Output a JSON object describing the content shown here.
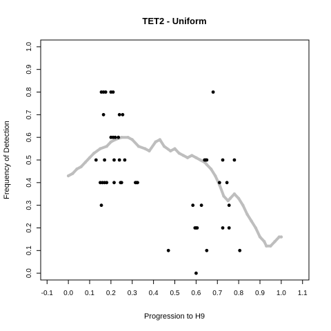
{
  "chart_data": {
    "type": "scatter",
    "title": "TET2 - Uniform",
    "xlabel": "Progression to H9",
    "ylabel": "Frequency of Detection",
    "xlim": [
      -0.13,
      1.13
    ],
    "ylim": [
      -0.03,
      1.03
    ],
    "xticks": [
      "-0.1",
      "0.0",
      "0.1",
      "0.2",
      "0.3",
      "0.4",
      "0.5",
      "0.6",
      "0.7",
      "0.8",
      "0.9",
      "1.0",
      "1.1"
    ],
    "yticks": [
      "0.0",
      "0.1",
      "0.2",
      "0.3",
      "0.4",
      "0.5",
      "0.6",
      "0.7",
      "0.8",
      "0.9",
      "1.0"
    ],
    "grid": false,
    "colors": {
      "points": "#000000",
      "trend": "#bebebe"
    },
    "series": [
      {
        "kind": "points",
        "points": [
          [
            0.155,
            0.8
          ],
          [
            0.165,
            0.8
          ],
          [
            0.175,
            0.8
          ],
          [
            0.2,
            0.8
          ],
          [
            0.21,
            0.8
          ],
          [
            0.165,
            0.7
          ],
          [
            0.24,
            0.7
          ],
          [
            0.255,
            0.7
          ],
          [
            0.2,
            0.6
          ],
          [
            0.21,
            0.6
          ],
          [
            0.22,
            0.6
          ],
          [
            0.235,
            0.6
          ],
          [
            0.13,
            0.5
          ],
          [
            0.17,
            0.5
          ],
          [
            0.215,
            0.5
          ],
          [
            0.24,
            0.5
          ],
          [
            0.265,
            0.5
          ],
          [
            0.15,
            0.4
          ],
          [
            0.16,
            0.4
          ],
          [
            0.17,
            0.4
          ],
          [
            0.18,
            0.4
          ],
          [
            0.215,
            0.4
          ],
          [
            0.245,
            0.4
          ],
          [
            0.25,
            0.4
          ],
          [
            0.315,
            0.4
          ],
          [
            0.32,
            0.4
          ],
          [
            0.325,
            0.4
          ],
          [
            0.155,
            0.3
          ],
          [
            0.64,
            0.5
          ],
          [
            0.645,
            0.5
          ],
          [
            0.65,
            0.5
          ],
          [
            0.68,
            0.8
          ],
          [
            0.725,
            0.5
          ],
          [
            0.78,
            0.5
          ],
          [
            0.71,
            0.4
          ],
          [
            0.745,
            0.4
          ],
          [
            0.585,
            0.3
          ],
          [
            0.625,
            0.3
          ],
          [
            0.755,
            0.3
          ],
          [
            0.595,
            0.2
          ],
          [
            0.6,
            0.2
          ],
          [
            0.605,
            0.2
          ],
          [
            0.725,
            0.2
          ],
          [
            0.755,
            0.2
          ],
          [
            0.47,
            0.1
          ],
          [
            0.65,
            0.1
          ],
          [
            0.805,
            0.1
          ],
          [
            0.6,
            0.0
          ]
        ]
      },
      {
        "kind": "trend",
        "points": [
          [
            0.0,
            0.43
          ],
          [
            0.02,
            0.44
          ],
          [
            0.04,
            0.46
          ],
          [
            0.06,
            0.47
          ],
          [
            0.08,
            0.49
          ],
          [
            0.1,
            0.51
          ],
          [
            0.12,
            0.53
          ],
          [
            0.15,
            0.55
          ],
          [
            0.18,
            0.56
          ],
          [
            0.2,
            0.58
          ],
          [
            0.22,
            0.59
          ],
          [
            0.25,
            0.6
          ],
          [
            0.28,
            0.6
          ],
          [
            0.3,
            0.59
          ],
          [
            0.33,
            0.56
          ],
          [
            0.36,
            0.55
          ],
          [
            0.38,
            0.54
          ],
          [
            0.41,
            0.58
          ],
          [
            0.43,
            0.59
          ],
          [
            0.45,
            0.56
          ],
          [
            0.48,
            0.54
          ],
          [
            0.5,
            0.55
          ],
          [
            0.52,
            0.53
          ],
          [
            0.54,
            0.52
          ],
          [
            0.56,
            0.51
          ],
          [
            0.58,
            0.52
          ],
          [
            0.6,
            0.51
          ],
          [
            0.62,
            0.5
          ],
          [
            0.64,
            0.49
          ],
          [
            0.65,
            0.48
          ],
          [
            0.67,
            0.46
          ],
          [
            0.69,
            0.43
          ],
          [
            0.71,
            0.39
          ],
          [
            0.73,
            0.34
          ],
          [
            0.75,
            0.32
          ],
          [
            0.76,
            0.33
          ],
          [
            0.78,
            0.35
          ],
          [
            0.8,
            0.33
          ],
          [
            0.82,
            0.3
          ],
          [
            0.84,
            0.26
          ],
          [
            0.86,
            0.23
          ],
          [
            0.88,
            0.2
          ],
          [
            0.9,
            0.16
          ],
          [
            0.92,
            0.14
          ],
          [
            0.93,
            0.12
          ],
          [
            0.95,
            0.12
          ],
          [
            0.97,
            0.14
          ],
          [
            0.99,
            0.16
          ],
          [
            1.0,
            0.16
          ]
        ]
      }
    ]
  }
}
